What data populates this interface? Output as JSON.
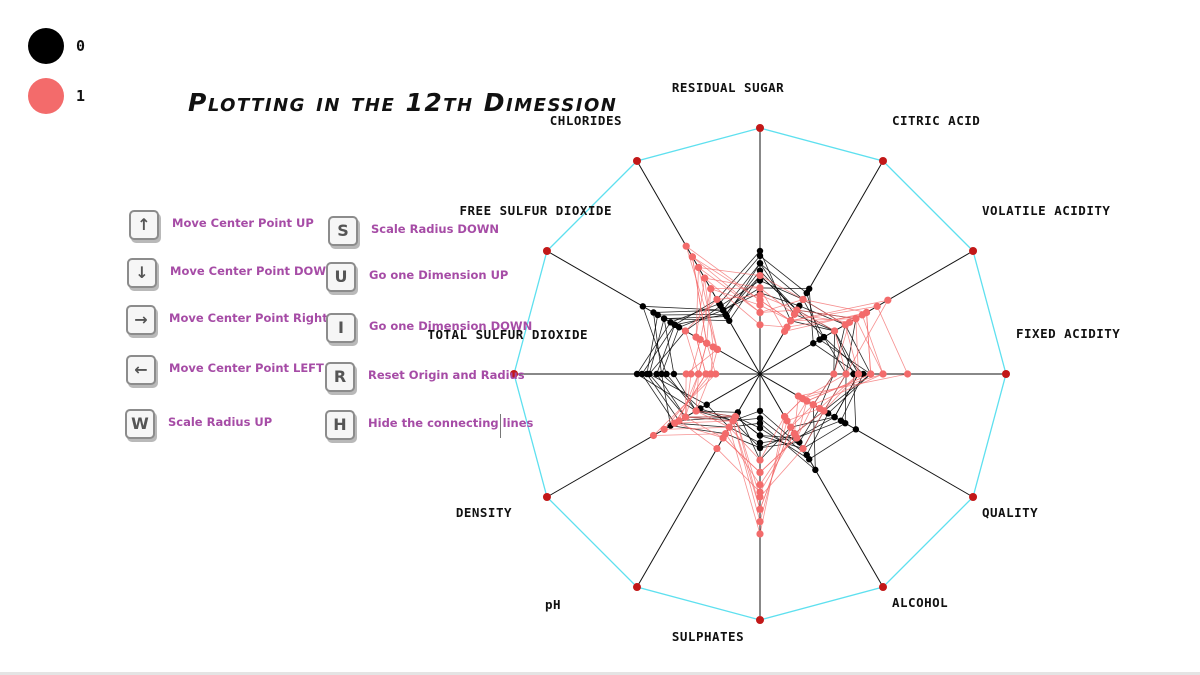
{
  "title": "Plotting in the 12th Dimession",
  "legend": [
    {
      "label": "0",
      "color": "#000000"
    },
    {
      "label": "1",
      "color": "#f36b6b"
    }
  ],
  "colors": {
    "outline": "#5ee0ef",
    "class0": "#000000",
    "class1": "#f36b6b",
    "vertex": "#c21818",
    "spoke": "#111111"
  },
  "controls": [
    {
      "key": "↑",
      "label": "Move Center Point UP",
      "icon": "arrow-up-icon"
    },
    {
      "key": "↓",
      "label": "Move Center Point DOWN",
      "icon": "arrow-down-icon"
    },
    {
      "key": "→",
      "label": "Move Center Point Right",
      "icon": "arrow-right-icon"
    },
    {
      "key": "←",
      "label": "Move Center Point LEFT",
      "icon": "arrow-left-icon"
    },
    {
      "key": "W",
      "label": "Scale Radius UP",
      "icon": "w-key-icon"
    },
    {
      "key": "S",
      "label": "Scale Radius DOWN",
      "icon": "s-key-icon"
    },
    {
      "key": "U",
      "label": "Go one Dimension UP",
      "icon": "u-key-icon"
    },
    {
      "key": "I",
      "label": "Go one Dimension DOWN",
      "icon": "i-key-icon"
    },
    {
      "key": "R",
      "label": "Reset Origin and Radius",
      "icon": "r-key-icon"
    },
    {
      "key": "H",
      "label": "Hide the connecting lines",
      "icon": "h-key-icon"
    }
  ],
  "chart_data": {
    "type": "radar",
    "axes": [
      "RESIDUAL SUGAR",
      "CITRIC ACID",
      "VOLATILE ACIDITY",
      "FIXED ACIDITY",
      "QUALITY",
      "ALCOHOL",
      "SULPHATES",
      "pH",
      "DENSITY",
      "TOTAL SULFUR DIOXIDE",
      "FREE SULFUR DIOXIDE",
      "CHLORIDES"
    ],
    "range": [
      0,
      1
    ],
    "grid": false,
    "legend_position": "top-left",
    "series": [
      {
        "name": "0",
        "color": "#000000",
        "records": [
          [
            0.45,
            0.35,
            0.4,
            0.45,
            0.3,
            0.28,
            0.3,
            0.22,
            0.28,
            0.4,
            0.5,
            0.3
          ],
          [
            0.4,
            0.3,
            0.3,
            0.35,
            0.4,
            0.35,
            0.25,
            0.2,
            0.35,
            0.45,
            0.45,
            0.25
          ],
          [
            0.5,
            0.25,
            0.35,
            0.3,
            0.25,
            0.45,
            0.2,
            0.25,
            0.4,
            0.48,
            0.4,
            0.35
          ],
          [
            0.35,
            0.4,
            0.25,
            0.4,
            0.35,
            0.25,
            0.35,
            0.18,
            0.3,
            0.38,
            0.55,
            0.3
          ],
          [
            0.42,
            0.3,
            0.45,
            0.35,
            0.3,
            0.35,
            0.15,
            0.22,
            0.35,
            0.42,
            0.4,
            0.28
          ],
          [
            0.38,
            0.35,
            0.3,
            0.42,
            0.38,
            0.3,
            0.28,
            0.25,
            0.25,
            0.45,
            0.35,
            0.32
          ],
          [
            0.45,
            0.28,
            0.35,
            0.38,
            0.45,
            0.4,
            0.22,
            0.2,
            0.3,
            0.35,
            0.45,
            0.27
          ],
          [
            0.33,
            0.32,
            0.4,
            0.3,
            0.28,
            0.32,
            0.3,
            0.28,
            0.42,
            0.4,
            0.38,
            0.3
          ],
          [
            0.48,
            0.38,
            0.28,
            0.45,
            0.32,
            0.38,
            0.18,
            0.22,
            0.3,
            0.5,
            0.42,
            0.33
          ],
          [
            0.4,
            0.3,
            0.35,
            0.4,
            0.35,
            0.3,
            0.25,
            0.2,
            0.38,
            0.46,
            0.48,
            0.28
          ]
        ]
      },
      {
        "name": "1",
        "color": "#f36b6b",
        "records": [
          [
            0.3,
            0.25,
            0.6,
            0.35,
            0.2,
            0.2,
            0.35,
            0.25,
            0.3,
            0.2,
            0.2,
            0.6
          ],
          [
            0.25,
            0.3,
            0.45,
            0.5,
            0.25,
            0.25,
            0.55,
            0.2,
            0.35,
            0.25,
            0.25,
            0.55
          ],
          [
            0.35,
            0.2,
            0.5,
            0.45,
            0.22,
            0.3,
            0.4,
            0.3,
            0.4,
            0.22,
            0.3,
            0.45
          ],
          [
            0.4,
            0.35,
            0.4,
            0.4,
            0.28,
            0.22,
            0.6,
            0.22,
            0.35,
            0.3,
            0.2,
            0.5
          ],
          [
            0.28,
            0.25,
            0.55,
            0.6,
            0.18,
            0.28,
            0.45,
            0.28,
            0.5,
            0.18,
            0.25,
            0.4
          ],
          [
            0.32,
            0.3,
            0.35,
            0.35,
            0.3,
            0.35,
            0.5,
            0.2,
            0.3,
            0.25,
            0.35,
            0.35
          ],
          [
            0.2,
            0.22,
            0.48,
            0.5,
            0.2,
            0.2,
            0.65,
            0.25,
            0.45,
            0.2,
            0.22,
            0.45
          ],
          [
            0.35,
            0.28,
            0.42,
            0.3,
            0.25,
            0.3,
            0.4,
            0.3,
            0.35,
            0.28,
            0.28,
            0.4
          ],
          [
            0.25,
            0.35,
            0.5,
            0.45,
            0.22,
            0.25,
            0.55,
            0.22,
            0.4,
            0.22,
            0.3,
            0.5
          ],
          [
            0.3,
            0.25,
            0.45,
            0.4,
            0.3,
            0.28,
            0.48,
            0.35,
            0.38,
            0.25,
            0.25,
            0.55
          ]
        ]
      }
    ]
  }
}
